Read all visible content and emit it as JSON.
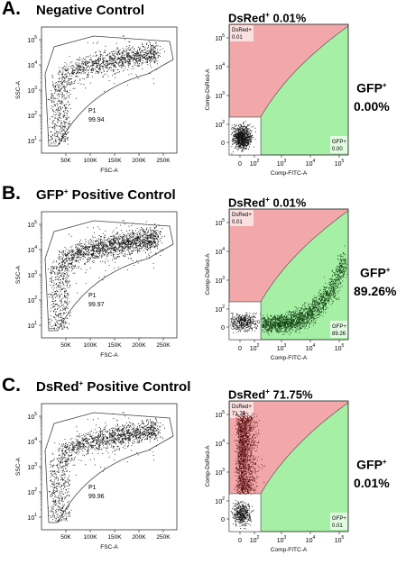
{
  "panels": [
    {
      "label": "A.",
      "title": "Negative Control",
      "title_sup": "",
      "title_rest": "",
      "dsred_text": "DsRed",
      "dsred_value": "0.01%",
      "gfp_label": "GFP",
      "gfp_value": "0.00%",
      "left_gate": {
        "name": "P1",
        "value": "99.94"
      },
      "right_gates": {
        "dsred_name": "DsRed+",
        "dsred_value": "0.01",
        "gfp_name": "GFP+",
        "gfp_value": "0.00"
      }
    },
    {
      "label": "B.",
      "title": "GFP",
      "title_sup": "+",
      "title_rest": " Positive Control",
      "dsred_text": "DsRed",
      "dsred_value": "0.01%",
      "gfp_label": "GFP",
      "gfp_value": "89.26%",
      "left_gate": {
        "name": "P1",
        "value": "99.97"
      },
      "right_gates": {
        "dsred_name": "DsRed+",
        "dsred_value": "0.01",
        "gfp_name": "GFP+",
        "gfp_value": "89.26"
      }
    },
    {
      "label": "C.",
      "title": "DsRed",
      "title_sup": "+",
      "title_rest": " Positive Control",
      "dsred_text": "DsRed",
      "dsred_value": "71.75%",
      "gfp_label": "GFP",
      "gfp_value": "0.01%",
      "left_gate": {
        "name": "P1",
        "value": "99.96"
      },
      "right_gates": {
        "dsred_name": "DsRed+",
        "dsred_value": "71.75",
        "gfp_name": "GFP+",
        "gfp_value": "0.01"
      }
    }
  ],
  "chart_data": [
    {
      "type": "scatter",
      "panel": "A",
      "plot": "FSC vs SSC",
      "xlabel": "FSC-A",
      "ylabel": "SSC-A",
      "x_ticks": [
        "50K",
        "100K",
        "150K",
        "200K",
        "250K"
      ],
      "y_ticks": [
        "10^1",
        "10^2",
        "10^3",
        "10^4",
        "10^5"
      ],
      "gate": {
        "name": "P1",
        "percent": 99.94
      }
    },
    {
      "type": "scatter",
      "panel": "A",
      "plot": "FITC vs DsRed",
      "xlabel": "Comp-FITC-A",
      "ylabel": "Comp-DsRed-A",
      "x_ticks": [
        "0",
        "10^2",
        "10^3",
        "10^4",
        "10^5"
      ],
      "y_ticks": [
        "0",
        "10^2",
        "10^3",
        "10^4",
        "10^5"
      ],
      "gates": [
        {
          "name": "DsRed+",
          "percent": 0.01
        },
        {
          "name": "GFP+",
          "percent": 0.0
        }
      ]
    },
    {
      "type": "scatter",
      "panel": "B",
      "plot": "FSC vs SSC",
      "xlabel": "FSC-A",
      "ylabel": "SSC-A",
      "x_ticks": [
        "50K",
        "100K",
        "150K",
        "200K",
        "250K"
      ],
      "y_ticks": [
        "10^1",
        "10^2",
        "10^3",
        "10^4",
        "10^5"
      ],
      "gate": {
        "name": "P1",
        "percent": 99.97
      }
    },
    {
      "type": "scatter",
      "panel": "B",
      "plot": "FITC vs DsRed",
      "xlabel": "Comp-FITC-A",
      "ylabel": "Comp-DsRed-A",
      "x_ticks": [
        "0",
        "10^2",
        "10^3",
        "10^4",
        "10^5"
      ],
      "y_ticks": [
        "0",
        "10^2",
        "10^3",
        "10^4",
        "10^5"
      ],
      "gates": [
        {
          "name": "DsRed+",
          "percent": 0.01
        },
        {
          "name": "GFP+",
          "percent": 89.26
        }
      ]
    },
    {
      "type": "scatter",
      "panel": "C",
      "plot": "FSC vs SSC",
      "xlabel": "FSC-A",
      "ylabel": "SSC-A",
      "x_ticks": [
        "50K",
        "100K",
        "150K",
        "200K",
        "250K"
      ],
      "y_ticks": [
        "10^1",
        "10^2",
        "10^3",
        "10^4",
        "10^5"
      ],
      "gate": {
        "name": "P1",
        "percent": 99.96
      }
    },
    {
      "type": "scatter",
      "panel": "C",
      "plot": "FITC vs DsRed",
      "xlabel": "Comp-FITC-A",
      "ylabel": "Comp-DsRed-A",
      "x_ticks": [
        "0",
        "10^2",
        "10^3",
        "10^4",
        "10^5"
      ],
      "y_ticks": [
        "0",
        "10^2",
        "10^3",
        "10^4",
        "10^5"
      ],
      "gates": [
        {
          "name": "DsRed+",
          "percent": 71.75
        },
        {
          "name": "GFP+",
          "percent": 0.01
        }
      ]
    }
  ],
  "colors": {
    "dsred_gate": "#f2a8a8",
    "gfp_gate": "#a6f0a6",
    "gate_line": "#555555",
    "dots": "#111111",
    "red_dots": "#5a1010",
    "green_dots": "#0e3a0e"
  }
}
